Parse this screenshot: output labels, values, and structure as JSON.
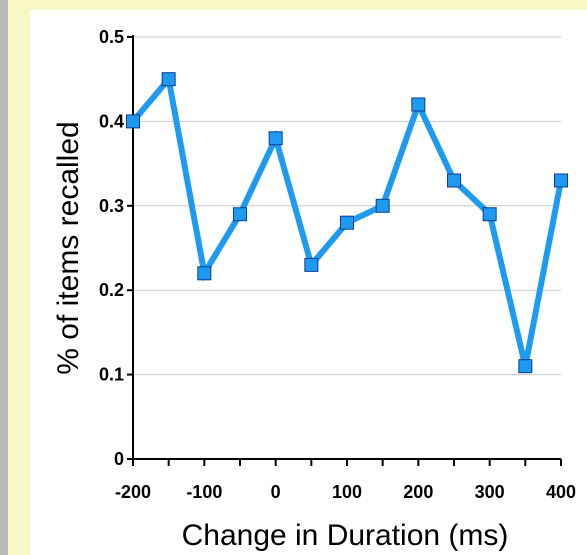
{
  "chart_data": {
    "type": "line",
    "title": "",
    "xlabel": "Change in Duration (ms)",
    "ylabel": "% of items recalled",
    "x": [
      -200,
      -150,
      -100,
      -50,
      0,
      50,
      100,
      150,
      200,
      250,
      300,
      350,
      400
    ],
    "series": [
      {
        "values": [
          0.4,
          0.45,
          0.22,
          0.29,
          0.38,
          0.23,
          0.28,
          0.3,
          0.42,
          0.33,
          0.29,
          0.11,
          0.33
        ]
      }
    ],
    "xlim": [
      -200,
      400
    ],
    "ylim": [
      0,
      0.5
    ],
    "xticks": [
      -200,
      -100,
      0,
      100,
      200,
      300,
      400
    ],
    "xtick_labels": [
      "-200",
      "-100",
      "0",
      "100",
      "200",
      "300",
      "400"
    ],
    "yticks": [
      0,
      0.1,
      0.2,
      0.3,
      0.4,
      0.5
    ],
    "ytick_labels": [
      "0",
      "0.1",
      "0.2",
      "0.3",
      "0.4",
      "0.5"
    ],
    "grid": "horizontal",
    "legend": "none",
    "colors": {
      "line": "#1e9bf0",
      "marker_fill": "#1e9bf0",
      "marker_edge": "#0a3d8f",
      "grid": "#c8c8c8",
      "axis": "#000000",
      "background": "#f8f7c6",
      "left_strip": "#b9b9b9",
      "panel": "#ffffff"
    }
  }
}
